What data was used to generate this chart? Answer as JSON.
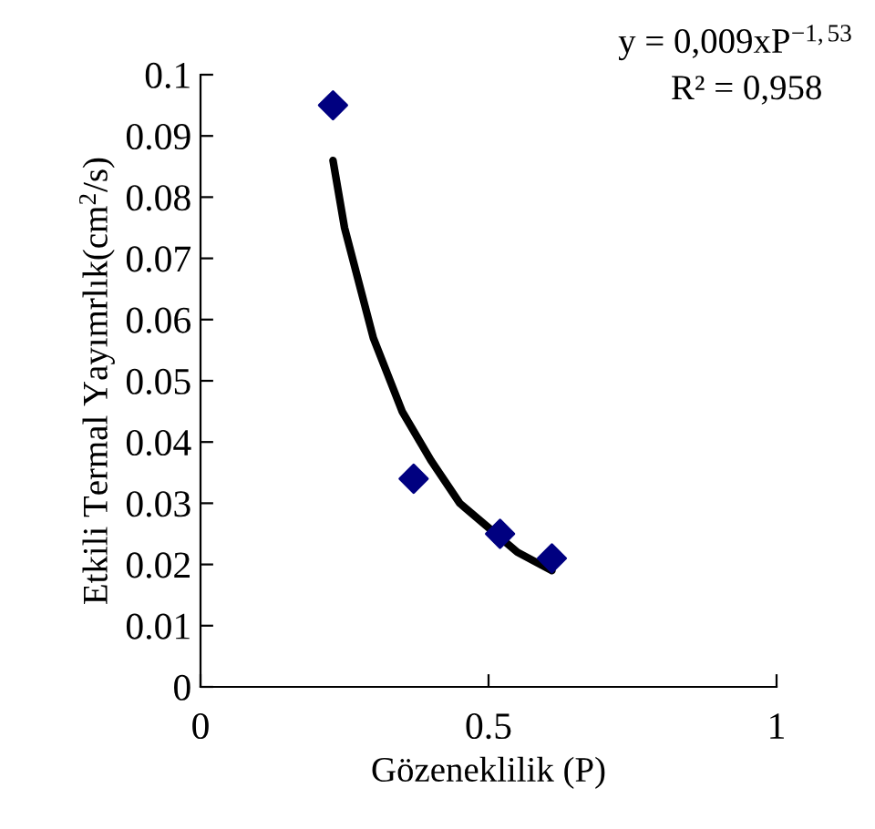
{
  "chart_data": {
    "type": "scatter",
    "xlabel": "Gözeneklilik (P)",
    "ylabel": "Etkili Termal Yayımrlık(cm$^{2}$/s)",
    "annotations": [
      "y = 0,009xP$^{−1,53}$",
      "R² = 0,958"
    ],
    "series": [
      {
        "color": "#000080",
        "marker": "diamond",
        "x": [
          0.23,
          0.37,
          0.52,
          0.61
        ],
        "values": [
          0.095,
          0.034,
          0.025,
          0.021
        ]
      },
      {
        "type": "line",
        "color": "#000000",
        "line_style": "solid",
        "x": [
          0.23,
          0.25,
          0.3,
          0.35,
          0.4,
          0.45,
          0.5,
          0.55,
          0.61
        ],
        "values": [
          0.086,
          0.075,
          0.057,
          0.045,
          0.037,
          0.03,
          0.026,
          0.022,
          0.019
        ]
      }
    ],
    "xlim": [
      0,
      1
    ],
    "ylim": [
      0,
      0.1
    ],
    "xticks": [
      0,
      0.5,
      1
    ],
    "yticks": [
      0,
      0.01,
      0.02,
      0.03,
      0.04,
      0.05,
      0.06,
      0.07,
      0.08,
      0.09,
      0.1
    ],
    "grid": false,
    "legend": false
  }
}
